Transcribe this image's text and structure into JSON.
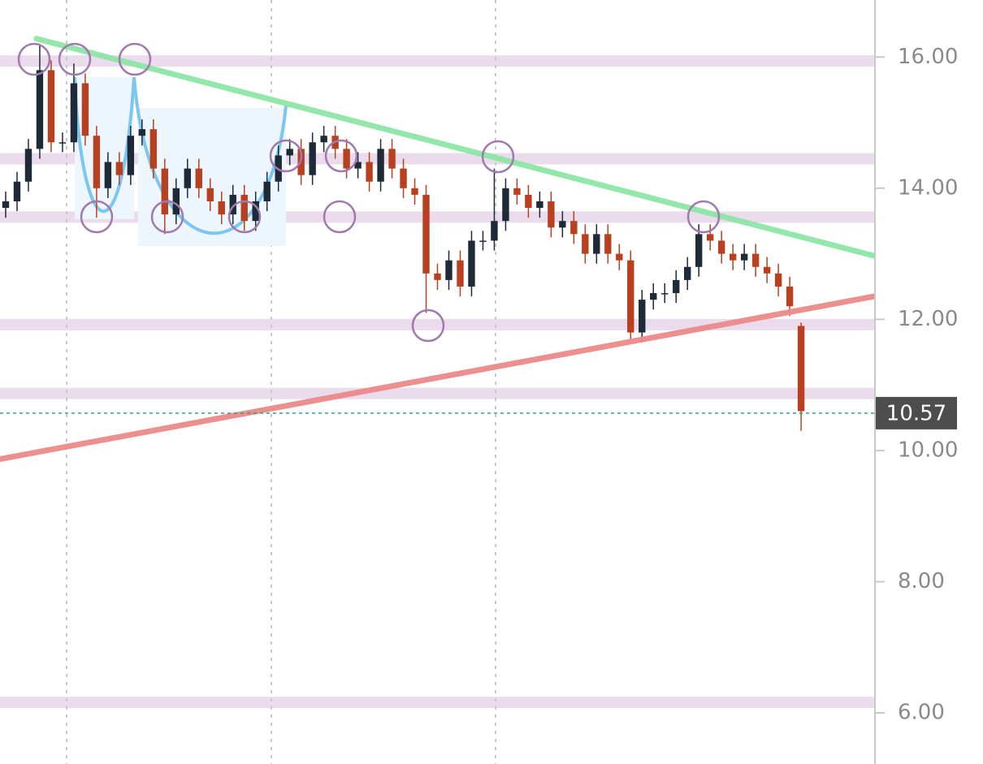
{
  "chart_data": {
    "type": "candlestick",
    "categories": [
      null,
      null,
      null,
      null,
      null,
      null,
      null,
      null,
      null,
      null,
      null,
      null,
      null,
      null,
      null,
      null,
      null,
      null,
      null,
      null,
      null,
      null,
      null,
      null,
      null,
      null,
      null,
      null,
      null,
      null,
      null,
      null,
      null,
      null,
      null,
      null,
      null,
      null,
      null,
      null,
      null,
      null,
      null,
      null,
      null,
      null,
      null,
      null,
      null,
      null,
      null,
      null,
      null,
      null,
      null,
      null,
      null,
      null,
      null,
      null,
      null,
      null,
      null,
      null,
      null,
      null,
      null,
      null,
      null,
      null,
      null
    ],
    "open": [
      13.7,
      13.8,
      14.1,
      14.6,
      15.8,
      14.7,
      14.7,
      15.6,
      14.8,
      14.0,
      14.4,
      14.2,
      14.8,
      14.9,
      14.3,
      13.6,
      14.0,
      14.3,
      14.0,
      13.8,
      13.6,
      13.9,
      13.5,
      13.8,
      14.1,
      14.5,
      14.6,
      14.2,
      14.7,
      14.8,
      14.6,
      14.3,
      14.4,
      14.1,
      14.6,
      14.3,
      14.0,
      13.9,
      12.7,
      12.6,
      12.9,
      12.5,
      13.2,
      13.2,
      13.5,
      14.0,
      13.9,
      13.7,
      13.8,
      13.4,
      13.5,
      13.3,
      13.0,
      13.3,
      13.0,
      12.9,
      11.8,
      12.3,
      12.4,
      12.4,
      12.6,
      12.8,
      13.3,
      13.2,
      13.0,
      12.9,
      13.0,
      12.8,
      12.7,
      12.5,
      11.9
    ],
    "high": [
      13.95,
      14.25,
      14.75,
      16.2,
      15.95,
      14.85,
      15.9,
      15.75,
      14.95,
      14.55,
      14.55,
      14.95,
      15.05,
      15.05,
      14.45,
      14.15,
      14.45,
      14.45,
      14.15,
      13.95,
      14.05,
      14.05,
      13.95,
      14.25,
      14.65,
      14.75,
      14.75,
      14.85,
      14.95,
      14.95,
      14.75,
      14.55,
      14.55,
      14.75,
      14.75,
      14.45,
      14.15,
      14.05,
      12.85,
      13.05,
      13.05,
      13.35,
      13.35,
      14.3,
      14.15,
      14.15,
      14.05,
      13.95,
      13.95,
      13.65,
      13.65,
      13.45,
      13.45,
      13.45,
      13.15,
      13.05,
      12.45,
      12.55,
      12.55,
      12.75,
      12.95,
      13.45,
      13.45,
      13.35,
      13.15,
      13.15,
      13.15,
      12.95,
      12.85,
      12.65,
      11.95
    ],
    "low": [
      13.55,
      13.65,
      13.95,
      14.45,
      14.55,
      14.55,
      14.55,
      14.65,
      13.55,
      13.85,
      14.05,
      14.05,
      14.65,
      14.15,
      13.3,
      13.45,
      13.85,
      13.85,
      13.65,
      13.45,
      13.45,
      13.35,
      13.35,
      13.65,
      13.95,
      14.35,
      14.05,
      14.05,
      14.55,
      14.45,
      14.15,
      14.15,
      13.95,
      13.95,
      14.15,
      13.85,
      13.75,
      12.1,
      12.45,
      12.45,
      12.35,
      12.35,
      13.05,
      13.05,
      13.35,
      13.75,
      13.55,
      13.55,
      13.25,
      13.25,
      13.15,
      12.85,
      12.85,
      12.85,
      12.75,
      11.7,
      11.65,
      12.15,
      12.25,
      12.25,
      12.45,
      12.65,
      13.05,
      12.85,
      12.75,
      12.75,
      12.65,
      12.55,
      12.35,
      12.05,
      10.3
    ],
    "close": [
      13.8,
      14.1,
      14.6,
      15.8,
      14.7,
      14.7,
      15.6,
      14.8,
      14.0,
      14.4,
      14.2,
      14.8,
      14.9,
      14.3,
      13.6,
      14.0,
      14.3,
      14.0,
      13.8,
      13.6,
      13.9,
      13.5,
      13.8,
      14.1,
      14.5,
      14.6,
      14.2,
      14.7,
      14.8,
      14.6,
      14.3,
      14.4,
      14.1,
      14.6,
      14.3,
      14.0,
      13.9,
      12.7,
      12.6,
      12.9,
      12.5,
      13.2,
      13.2,
      13.5,
      14.0,
      13.9,
      13.7,
      13.8,
      13.4,
      13.5,
      13.3,
      13.0,
      13.3,
      13.0,
      12.9,
      11.8,
      12.3,
      12.4,
      12.4,
      12.6,
      12.8,
      13.3,
      13.2,
      13.0,
      12.9,
      13.0,
      12.8,
      12.7,
      12.5,
      12.2,
      10.6
    ],
    "up_color": "#1e2a38",
    "down_color": "#b8401f",
    "xlim": [
      -0.5,
      76.5
    ],
    "ylim": [
      5.22,
      16.87
    ],
    "yticks": [
      {
        "value": 16,
        "label": "16.00"
      },
      {
        "value": 14,
        "label": "14.00"
      },
      {
        "value": 12,
        "label": "12.00"
      },
      {
        "value": 10,
        "label": "10.00"
      },
      {
        "value": 8,
        "label": "8.00"
      },
      {
        "value": 6,
        "label": "6.00"
      }
    ],
    "levels": [
      15.94,
      14.45,
      13.56,
      11.92,
      10.87,
      6.16
    ],
    "level_color": "#e6d6ea",
    "trendlines": [
      {
        "color": "#8ee6a6",
        "x": [
          2.7,
          76.4
        ],
        "y": [
          16.28,
          12.97
        ]
      },
      {
        "color": "#ec8a8a",
        "x": [
          -0.5,
          76.4
        ],
        "y": [
          9.87,
          12.35
        ]
      }
    ],
    "last_price": 10.57,
    "last_price_color": "#2fa37c"
  }
}
